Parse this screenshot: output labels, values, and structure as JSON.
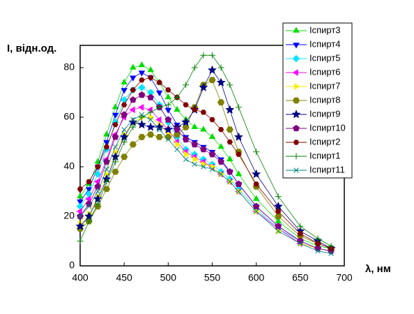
{
  "chart_data": {
    "type": "line",
    "y_label": "I, відн.од.",
    "x_label": "λ, нм",
    "x": [
      400,
      410,
      420,
      430,
      440,
      450,
      460,
      470,
      480,
      490,
      500,
      510,
      520,
      530,
      540,
      550,
      560,
      570,
      580,
      600,
      625,
      650,
      670,
      685
    ],
    "xlim": [
      400,
      700
    ],
    "xticks": [
      400,
      450,
      500,
      550,
      600,
      650,
      700
    ],
    "ylim": [
      0,
      89
    ],
    "yticks": [
      0,
      20,
      40,
      60,
      80
    ],
    "legend": "top-right",
    "series": [
      {
        "name": "Іспирт3",
        "color": "#00dd00",
        "marker": "triangle-up",
        "values": [
          28,
          33,
          42,
          53,
          64,
          74,
          80,
          81,
          79,
          74,
          68,
          63,
          59,
          56,
          55,
          52,
          48,
          43,
          37,
          27,
          18,
          11,
          8,
          7
        ]
      },
      {
        "name": "Іспирт4",
        "color": "#0000ff",
        "marker": "triangle-down",
        "values": [
          26,
          31,
          40,
          50,
          61,
          71,
          76,
          78,
          76,
          70,
          63,
          57,
          52,
          50,
          48,
          46,
          43,
          38,
          33,
          24,
          16,
          10,
          7,
          6
        ]
      },
      {
        "name": "Іспирт5",
        "color": "#00e5ff",
        "marker": "diamond",
        "values": [
          24,
          29,
          37,
          47,
          58,
          67,
          71,
          72,
          70,
          65,
          58,
          52,
          47,
          45,
          43,
          41,
          38,
          35,
          31,
          23,
          15,
          10,
          7,
          6
        ]
      },
      {
        "name": "Іспирт6",
        "color": "#ff00ff",
        "marker": "triangle-left",
        "values": [
          22,
          27,
          34,
          43,
          53,
          60,
          63,
          64,
          63,
          59,
          55,
          50,
          46,
          44,
          42,
          40,
          37,
          34,
          30,
          22,
          15,
          9,
          7,
          6
        ]
      },
      {
        "name": "Іспирт7",
        "color": "#ffee00",
        "marker": "triangle-right",
        "values": [
          17,
          21,
          28,
          37,
          46,
          53,
          58,
          60,
          60,
          57,
          53,
          49,
          45,
          43,
          41,
          40,
          37,
          34,
          30,
          22,
          14,
          9,
          7,
          6
        ]
      },
      {
        "name": "Іспирт8",
        "color": "#808000",
        "marker": "hexagon",
        "values": [
          15,
          18,
          24,
          31,
          38,
          44,
          49,
          52,
          53,
          52,
          52,
          53,
          56,
          64,
          73,
          75,
          66,
          55,
          46,
          32,
          20,
          12,
          9,
          7
        ]
      },
      {
        "name": "Іспирт9",
        "color": "#000080",
        "marker": "star",
        "values": [
          16,
          20,
          27,
          35,
          44,
          52,
          58,
          57,
          56,
          56,
          55,
          56,
          58,
          63,
          72,
          79,
          74,
          63,
          52,
          37,
          24,
          14,
          10,
          7
        ]
      },
      {
        "name": "Іспирт10",
        "color": "#800080",
        "marker": "pentagon",
        "values": [
          20,
          25,
          32,
          42,
          52,
          61,
          67,
          69,
          68,
          64,
          59,
          55,
          51,
          49,
          47,
          45,
          42,
          38,
          33,
          24,
          16,
          10,
          7,
          6
        ]
      },
      {
        "name": "Іспирт2",
        "color": "#800000",
        "marker": "hexagon-small",
        "values": [
          31,
          34,
          40,
          48,
          57,
          65,
          71,
          75,
          76,
          74,
          71,
          68,
          65,
          63,
          62,
          59,
          55,
          50,
          45,
          33,
          22,
          13,
          9,
          7
        ]
      },
      {
        "name": "Іспирт1",
        "color": "#008000",
        "marker": "plus",
        "values": [
          10,
          18,
          25,
          34,
          42,
          50,
          56,
          60,
          62,
          64,
          65,
          68,
          73,
          80,
          85,
          85,
          80,
          73,
          64,
          46,
          28,
          16,
          11,
          8
        ]
      },
      {
        "name": "Іспирт11",
        "color": "#008080",
        "marker": "cross",
        "values": [
          20,
          24,
          30,
          39,
          48,
          55,
          59,
          61,
          59,
          55,
          51,
          47,
          43,
          41,
          40,
          39,
          37,
          34,
          30,
          22,
          14,
          9,
          6,
          5
        ]
      }
    ]
  }
}
